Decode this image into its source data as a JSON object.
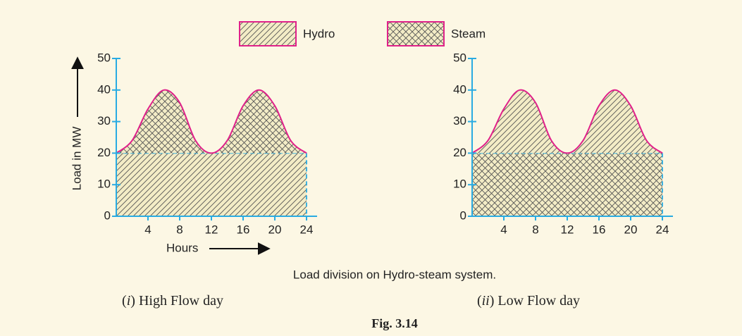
{
  "legend": [
    {
      "name": "Hydro",
      "pattern": "diagonal"
    },
    {
      "name": "Steam",
      "pattern": "cross"
    }
  ],
  "caption": "Load division on Hydro-steam system.",
  "figure": "Fig. 3.14",
  "chart_data": [
    {
      "type": "area",
      "subtitle": "(i) High Flow day",
      "ylabel": "Load in MW",
      "xlabel": "Hours",
      "x": [
        0,
        2,
        4,
        6,
        8,
        10,
        12,
        14,
        16,
        18,
        20,
        22,
        24
      ],
      "series": [
        {
          "pattern": "diagonal",
          "values": [
            20,
            20,
            20,
            20,
            20,
            20,
            20,
            20,
            20,
            20,
            20,
            20,
            20
          ]
        },
        {
          "pattern": "cross",
          "values": [
            0,
            4,
            14,
            20,
            16,
            4,
            0,
            4,
            15,
            20,
            15,
            4,
            0
          ]
        }
      ],
      "xlim": [
        0,
        24
      ],
      "xticks": [
        4,
        8,
        12,
        16,
        20,
        24
      ],
      "ylim": [
        0,
        50
      ],
      "yticks": [
        0,
        10,
        20,
        30,
        40,
        50
      ],
      "line_color": "#e0218a",
      "axis_color": "#29abe2"
    },
    {
      "type": "area",
      "subtitle": "(ii) Low Flow day",
      "x": [
        0,
        2,
        4,
        6,
        8,
        10,
        12,
        14,
        16,
        18,
        20,
        22,
        24
      ],
      "series": [
        {
          "pattern": "cross",
          "values": [
            20,
            20,
            20,
            20,
            20,
            20,
            20,
            20,
            20,
            20,
            20,
            20,
            20
          ]
        },
        {
          "pattern": "diagonal",
          "values": [
            0,
            4,
            14,
            20,
            16,
            4,
            0,
            4,
            15,
            20,
            15,
            4,
            0
          ]
        }
      ],
      "xlim": [
        0,
        24
      ],
      "xticks": [
        4,
        8,
        12,
        16,
        20,
        24
      ],
      "ylim": [
        0,
        50
      ],
      "yticks": [
        0,
        10,
        20,
        30,
        40,
        50
      ],
      "line_color": "#e0218a",
      "axis_color": "#29abe2"
    }
  ]
}
